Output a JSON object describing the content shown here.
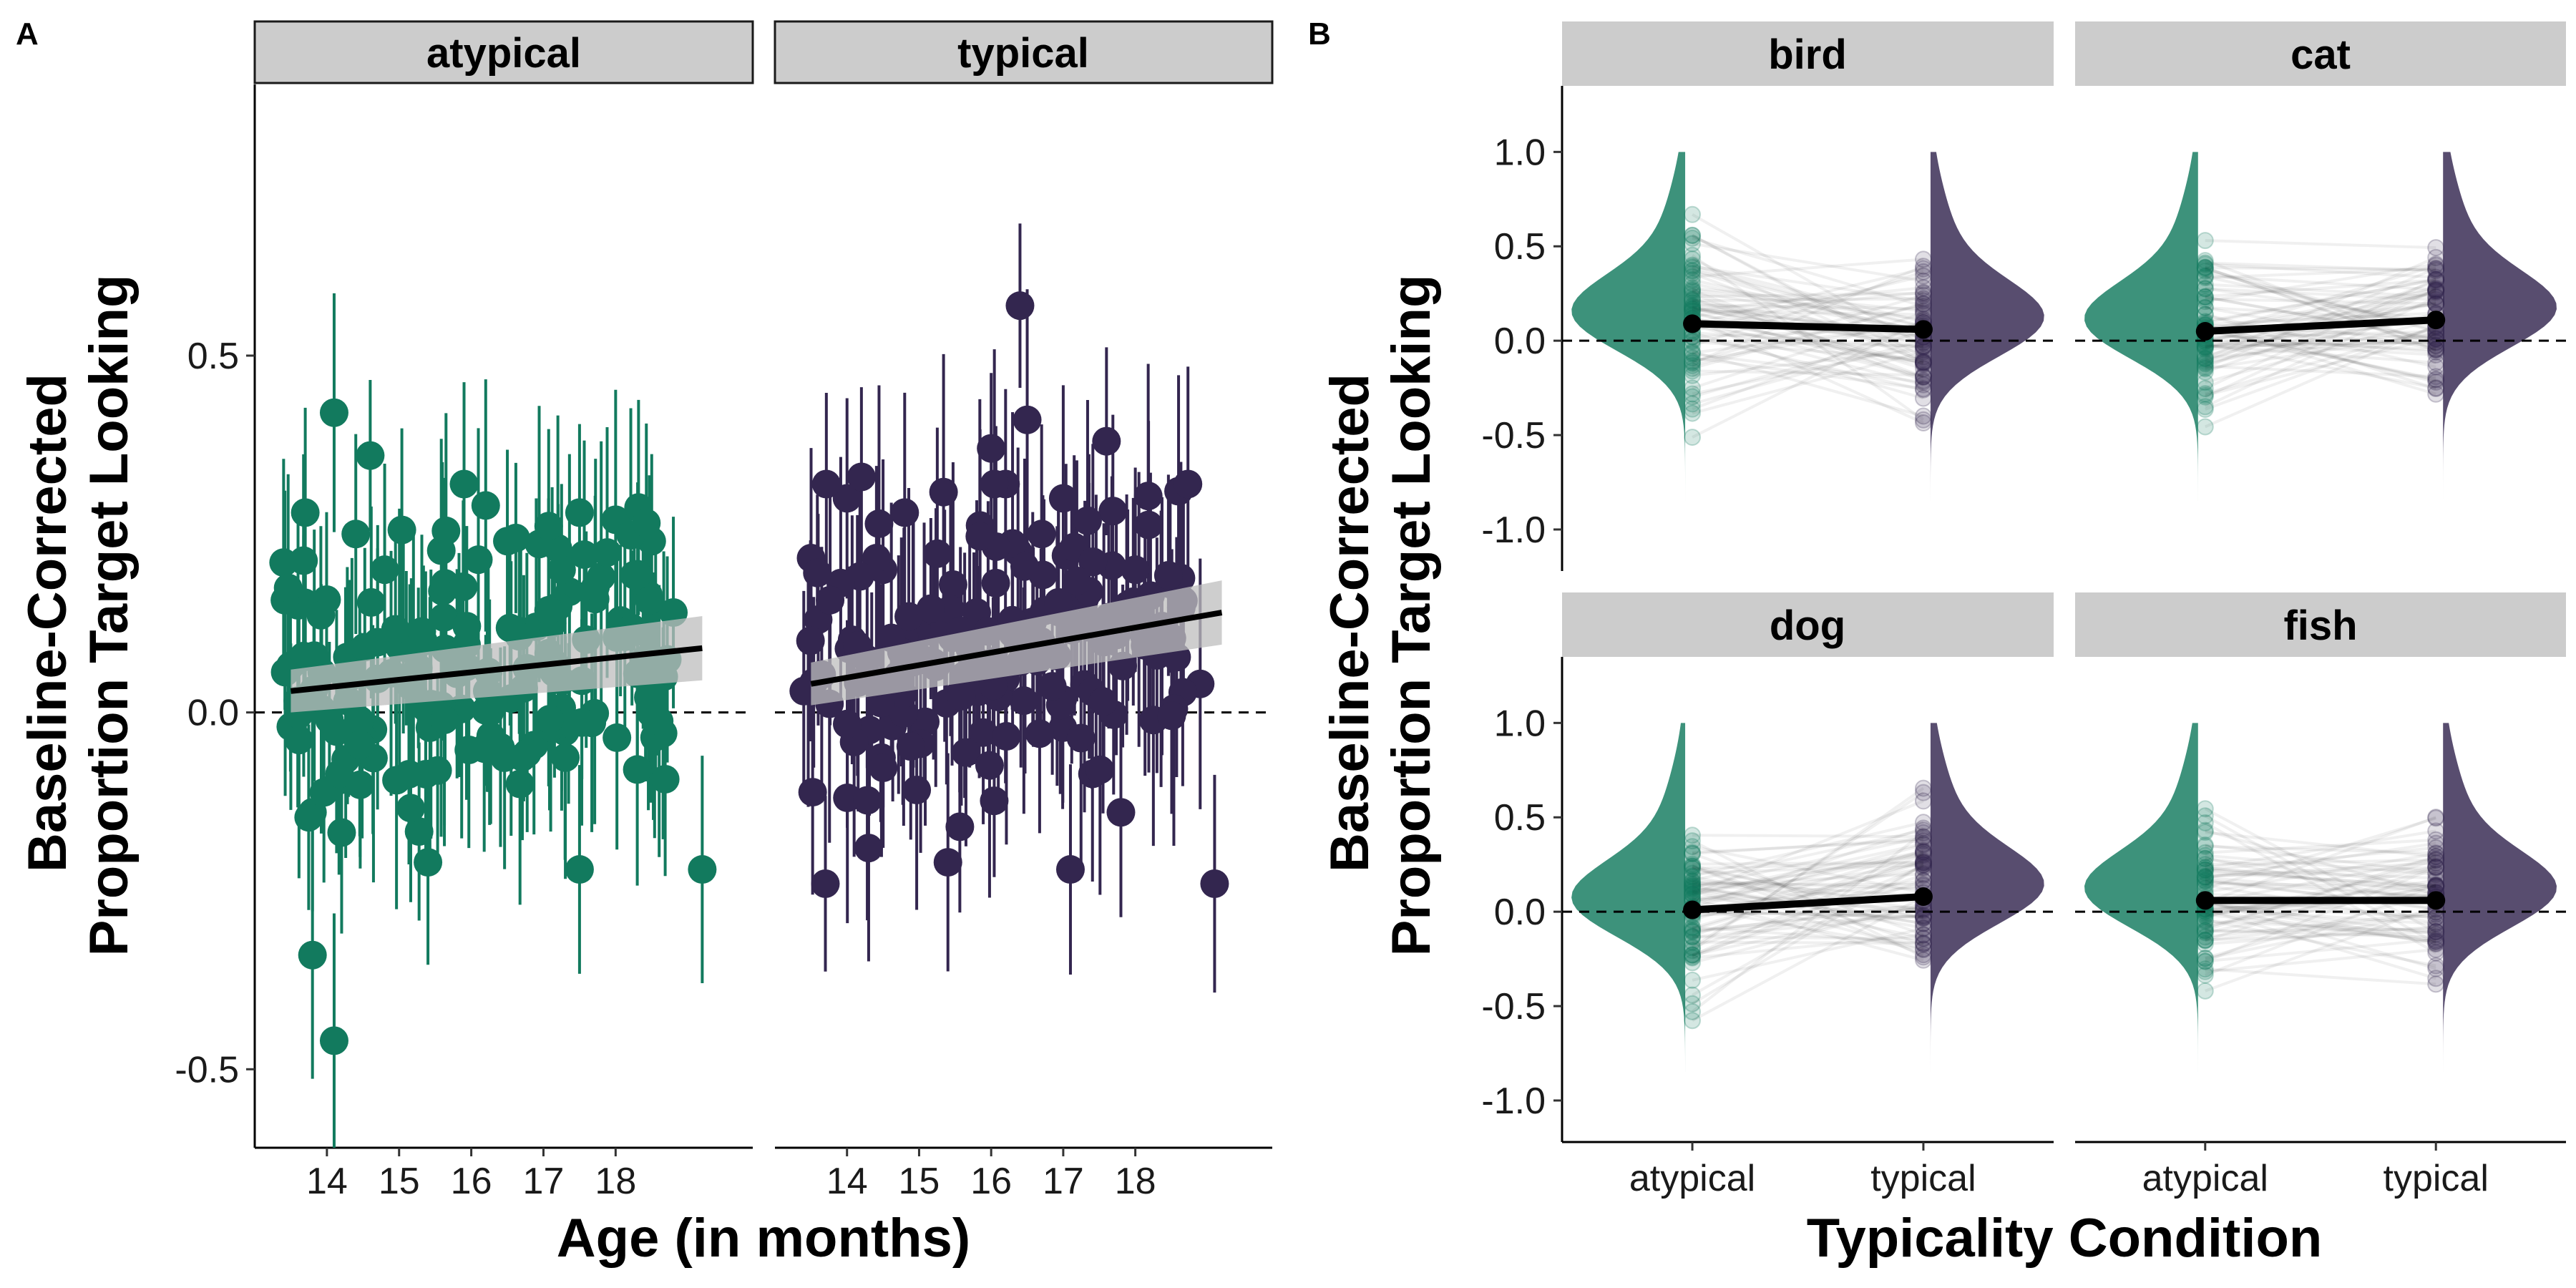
{
  "colors": {
    "atypical": "#127a5e",
    "typical": "#33264f",
    "strip_fill": "#cccccc",
    "trend": "#000000",
    "ribbon": "#bdbdbd"
  },
  "chart_data": [
    {
      "panel_tag": "A",
      "type": "scatter",
      "facets": [
        "atypical",
        "typical"
      ],
      "xlabel": "Age (in months)",
      "ylabel_lines": [
        "Baseline-Corrected",
        "Proportion Target Looking"
      ],
      "xticks": [
        14,
        15,
        16,
        17,
        18
      ],
      "xlim": [
        13.0,
        19.9
      ],
      "yticks": [
        0.5,
        0.0,
        -0.5
      ],
      "ytick_labels": [
        "0.5",
        "0.0",
        "-0.5"
      ],
      "ylim": [
        -0.61,
        0.88
      ],
      "reference_line_y": 0,
      "point_interval_halfwidth_approx": 0.15,
      "series": [
        {
          "name": "atypical",
          "trend_line": {
            "x0": 13.5,
            "y0": 0.03,
            "x1": 19.2,
            "y1": 0.09
          },
          "points_sample": [
            [
              13.4,
              0.21
            ],
            [
              13.5,
              -0.02
            ],
            [
              13.6,
              0.15
            ],
            [
              13.7,
              0.28
            ],
            [
              13.8,
              -0.14
            ],
            [
              13.8,
              -0.34
            ],
            [
              14.1,
              0.42
            ],
            [
              14.1,
              -0.46
            ],
            [
              14.4,
              0.25
            ],
            [
              14.6,
              0.36
            ],
            [
              14.8,
              0.2
            ],
            [
              15.1,
              0.09
            ],
            [
              15.4,
              -0.21
            ],
            [
              15.6,
              0.17
            ],
            [
              15.9,
              0.32
            ],
            [
              16.2,
              0.29
            ],
            [
              16.5,
              0.24
            ],
            [
              16.9,
              0.12
            ],
            [
              17.2,
              0.23
            ],
            [
              17.5,
              0.28
            ],
            [
              17.5,
              -0.22
            ],
            [
              17.8,
              0.19
            ],
            [
              18.0,
              0.27
            ],
            [
              18.3,
              -0.08
            ],
            [
              18.5,
              0.24
            ],
            [
              18.8,
              0.14
            ],
            [
              19.2,
              -0.22
            ]
          ]
        },
        {
          "name": "typical",
          "trend_line": {
            "x0": 13.5,
            "y0": 0.04,
            "x1": 19.2,
            "y1": 0.14
          },
          "points_sample": [
            [
              13.4,
              0.03
            ],
            [
              13.6,
              0.13
            ],
            [
              13.7,
              -0.24
            ],
            [
              14.0,
              0.3
            ],
            [
              14.2,
              0.33
            ],
            [
              14.3,
              -0.19
            ],
            [
              14.5,
              0.2
            ],
            [
              14.8,
              0.28
            ],
            [
              15.2,
              0.07
            ],
            [
              15.4,
              -0.21
            ],
            [
              15.8,
              0.14
            ],
            [
              16.0,
              0.37
            ],
            [
              16.2,
              0.32
            ],
            [
              16.4,
              0.57
            ],
            [
              16.5,
              0.41
            ],
            [
              16.7,
              0.25
            ],
            [
              17.0,
              0.3
            ],
            [
              17.1,
              -0.22
            ],
            [
              17.3,
              0.16
            ],
            [
              17.6,
              0.38
            ],
            [
              17.8,
              -0.14
            ],
            [
              18.0,
              0.2
            ],
            [
              18.3,
              0.08
            ],
            [
              18.6,
              0.31
            ],
            [
              18.9,
              0.04
            ],
            [
              19.1,
              -0.24
            ]
          ]
        }
      ]
    },
    {
      "panel_tag": "B",
      "type": "line",
      "facets": [
        "bird",
        "cat",
        "dog",
        "fish"
      ],
      "categories": [
        "atypical",
        "typical"
      ],
      "xlabel": "Typicality Condition",
      "ylabel_lines": [
        "Baseline-Corrected",
        "Proportion Target Looking"
      ],
      "yticks": [
        1.0,
        0.5,
        0.0,
        -0.5,
        -1.0
      ],
      "ytick_labels": [
        "1.0",
        "0.5",
        "0.0",
        "-0.5",
        "-1.0"
      ],
      "ylim": [
        -1.22,
        1.35
      ],
      "reference_line_y": 0,
      "means": {
        "bird": [
          0.09,
          0.06
        ],
        "cat": [
          0.05,
          0.11
        ],
        "dog": [
          0.01,
          0.08
        ],
        "fish": [
          0.06,
          0.06
        ]
      }
    }
  ]
}
